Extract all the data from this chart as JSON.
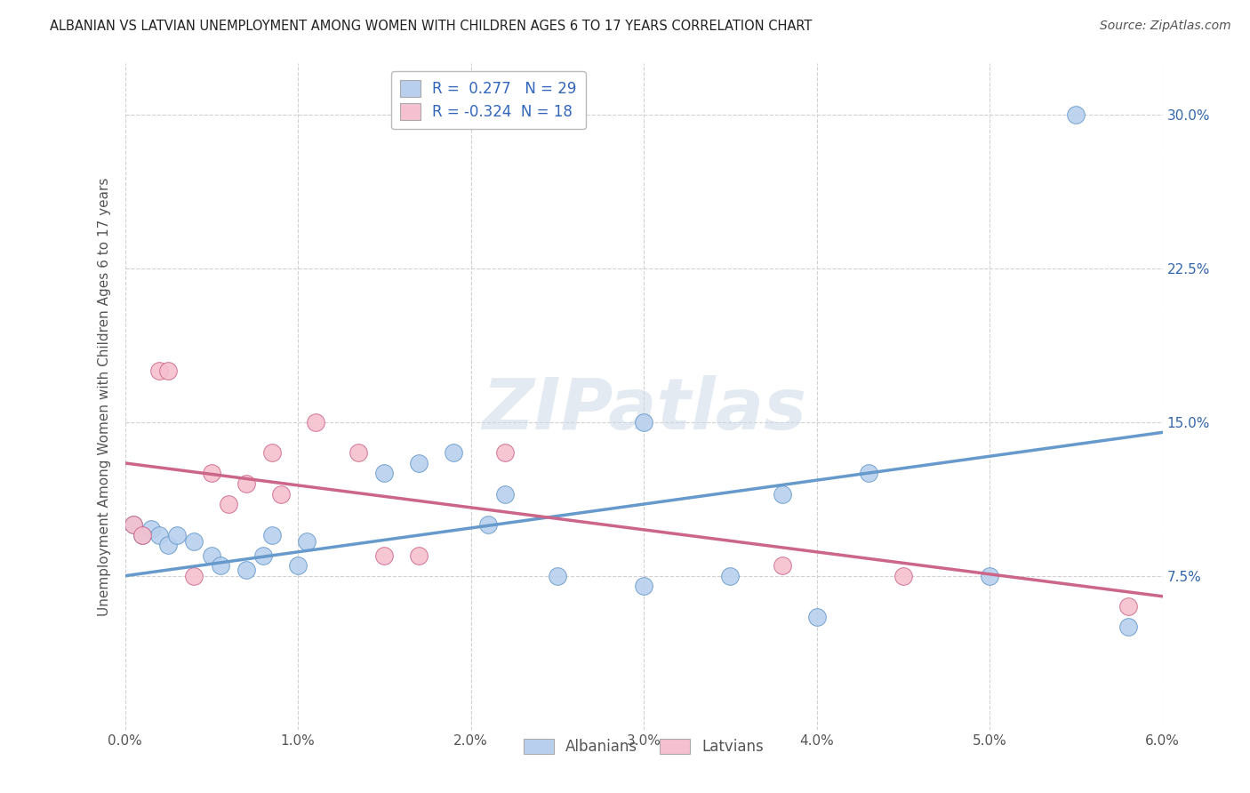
{
  "title": "ALBANIAN VS LATVIAN UNEMPLOYMENT AMONG WOMEN WITH CHILDREN AGES 6 TO 17 YEARS CORRELATION CHART",
  "source": "Source: ZipAtlas.com",
  "ylabel": "Unemployment Among Women with Children Ages 6 to 17 years",
  "xlabel_ticks": [
    "0.0%",
    "1.0%",
    "2.0%",
    "3.0%",
    "4.0%",
    "5.0%",
    "6.0%"
  ],
  "xlabel_vals": [
    0.0,
    1.0,
    2.0,
    3.0,
    4.0,
    5.0,
    6.0
  ],
  "ylabel_ticks": [
    "7.5%",
    "15.0%",
    "22.5%",
    "30.0%"
  ],
  "ylabel_vals": [
    7.5,
    15.0,
    22.5,
    30.0
  ],
  "xlim": [
    0.0,
    6.0
  ],
  "ylim": [
    0.0,
    32.5
  ],
  "alb_line": [
    7.5,
    14.5
  ],
  "lat_line": [
    13.0,
    6.5
  ],
  "albanians": {
    "R": 0.277,
    "N": 29,
    "color": "#b8d0ed",
    "edge_color": "#6699cc",
    "x": [
      0.05,
      0.1,
      0.15,
      0.2,
      0.25,
      0.3,
      0.4,
      0.5,
      0.55,
      0.7,
      0.8,
      0.85,
      1.0,
      1.05,
      1.5,
      1.7,
      1.9,
      2.1,
      2.2,
      2.5,
      3.0,
      3.5,
      3.8,
      4.0,
      4.3,
      5.0,
      5.5,
      5.8,
      3.0
    ],
    "y": [
      10.0,
      9.5,
      9.8,
      9.5,
      9.0,
      9.5,
      9.2,
      8.5,
      8.0,
      7.8,
      8.5,
      9.5,
      8.0,
      9.2,
      12.5,
      13.0,
      13.5,
      10.0,
      11.5,
      7.5,
      7.0,
      7.5,
      11.5,
      5.5,
      12.5,
      7.5,
      30.0,
      5.0,
      15.0
    ]
  },
  "latvians": {
    "R": -0.324,
    "N": 18,
    "color": "#f5c0cf",
    "edge_color": "#cc6688",
    "x": [
      0.05,
      0.1,
      0.2,
      0.25,
      0.4,
      0.5,
      0.7,
      0.85,
      0.9,
      1.1,
      1.35,
      1.5,
      1.7,
      2.2,
      3.8,
      4.5,
      5.8,
      0.6
    ],
    "y": [
      10.0,
      9.5,
      17.5,
      17.5,
      7.5,
      12.5,
      12.0,
      13.5,
      11.5,
      15.0,
      13.5,
      8.5,
      8.5,
      13.5,
      8.0,
      7.5,
      6.0,
      11.0
    ]
  },
  "legend_items": [
    "Albanians",
    "Latvians"
  ],
  "watermark": "ZIPatlas"
}
